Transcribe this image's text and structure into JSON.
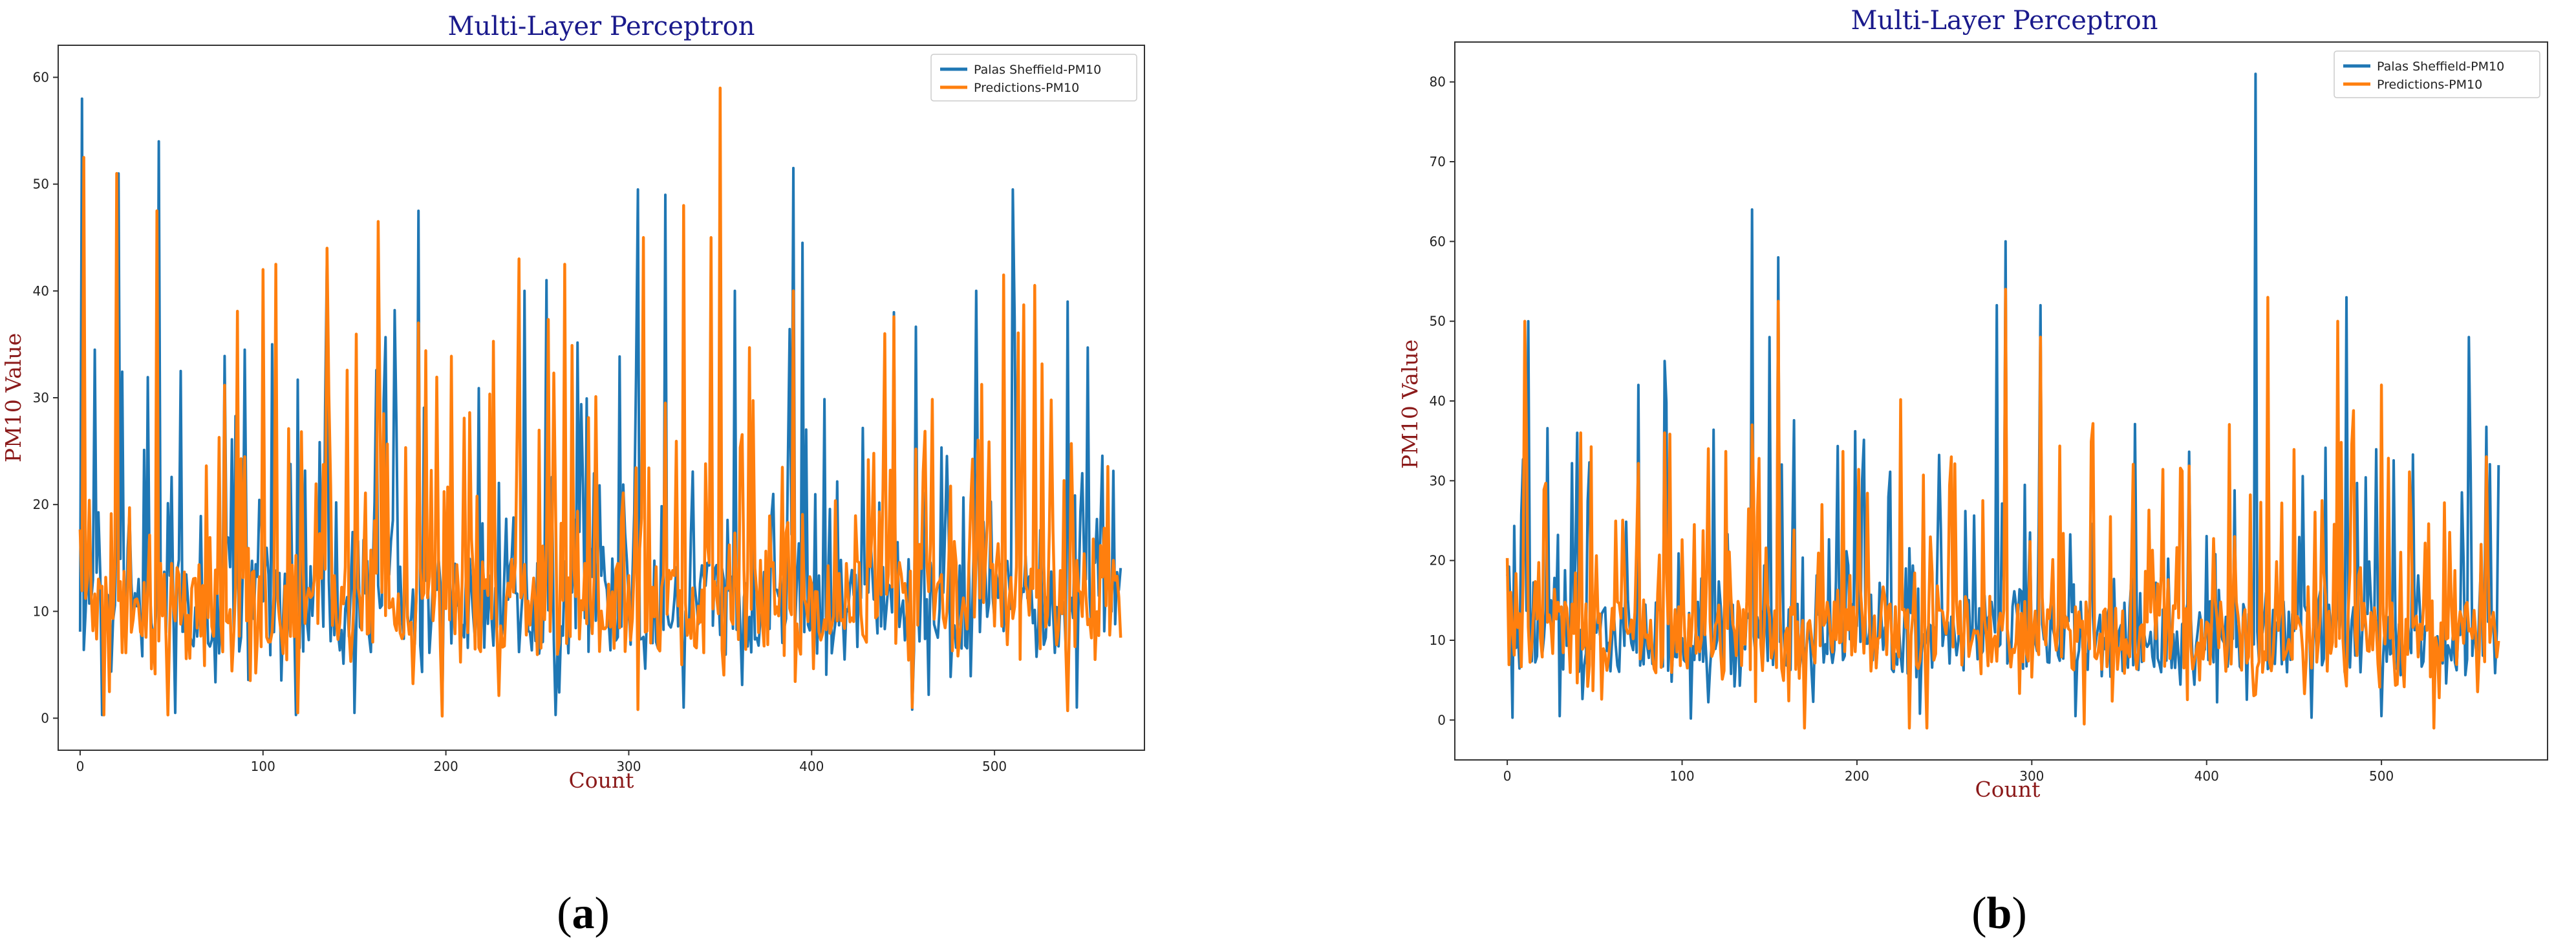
{
  "chart_data": [
    {
      "panel": "(a)",
      "type": "line",
      "title": "Multi-Layer Perceptron",
      "xlabel": "Count",
      "ylabel": "PM10 Value",
      "xlim": [
        -12,
        582
      ],
      "ylim": [
        -3,
        63
      ],
      "xticks": [
        0,
        100,
        200,
        300,
        400,
        500
      ],
      "yticks": [
        0,
        10,
        20,
        30,
        40,
        50,
        60
      ],
      "legend_position": "top-right",
      "n_points": 570,
      "seed": 7,
      "series": [
        {
          "name": "Palas Sheffield-PM10",
          "color": "#1f77b4",
          "peaks": [
            [
              1,
              58
            ],
            [
              3,
              10
            ],
            [
              8,
              34.5
            ],
            [
              21,
              51
            ],
            [
              43,
              54
            ],
            [
              55,
              32.5
            ],
            [
              90,
              34.5
            ],
            [
              105,
              35
            ],
            [
              135,
              44
            ],
            [
              150,
              42.5
            ],
            [
              185,
              47.5
            ],
            [
              243,
              40
            ],
            [
              255,
              41
            ],
            [
              305,
              49.5
            ],
            [
              320,
              49
            ],
            [
              345,
              44
            ],
            [
              358,
              40
            ],
            [
              390,
              51.5
            ],
            [
              395,
              44.5
            ],
            [
              445,
              38
            ],
            [
              490,
              40
            ],
            [
              510,
              49.5
            ],
            [
              540,
              39
            ]
          ],
          "dips": [
            [
              12,
              0.3
            ],
            [
              52,
              0.5
            ],
            [
              118,
              0.3
            ],
            [
              150,
              0.5
            ],
            [
              198,
              0.4
            ],
            [
              260,
              0.3
            ],
            [
              330,
              1.0
            ],
            [
              455,
              0.8
            ],
            [
              545,
              1.0
            ]
          ]
        },
        {
          "name": "Predictions-PM10",
          "color": "#ff7f0e",
          "peaks": [
            [
              2,
              52.5
            ],
            [
              20,
              51
            ],
            [
              42,
              47.5
            ],
            [
              100,
              42
            ],
            [
              107,
              42.5
            ],
            [
              135,
              44
            ],
            [
              163,
              46.5
            ],
            [
              185,
              37
            ],
            [
              240,
              43
            ],
            [
              265,
              42.5
            ],
            [
              308,
              45
            ],
            [
              330,
              48
            ],
            [
              345,
              45
            ],
            [
              350,
              59
            ],
            [
              390,
              40
            ],
            [
              440,
              36
            ],
            [
              505,
              41.5
            ],
            [
              540,
              28
            ]
          ],
          "dips": [
            [
              13,
              0.3
            ],
            [
              48,
              0.3
            ],
            [
              119,
              0.5
            ],
            [
              198,
              0.2
            ],
            [
              305,
              0.8
            ],
            [
              455,
              1.0
            ],
            [
              540,
              0.7
            ]
          ]
        }
      ]
    },
    {
      "panel": "(b)",
      "type": "line",
      "title": "Multi-Layer Perceptron",
      "xlabel": "Count",
      "ylabel": "PM10 Value",
      "xlim": [
        -30,
        595
      ],
      "ylim": [
        -5,
        85
      ],
      "xticks": [
        0,
        100,
        200,
        300,
        400,
        500
      ],
      "yticks": [
        0,
        10,
        20,
        30,
        40,
        50,
        60,
        70,
        80
      ],
      "legend_position": "top-right",
      "n_points": 568,
      "seed": 19,
      "series": [
        {
          "name": "Palas Sheffield-PM10",
          "color": "#1f77b4",
          "peaks": [
            [
              12,
              50
            ],
            [
              40,
              36
            ],
            [
              75,
              42
            ],
            [
              90,
              45
            ],
            [
              140,
              64
            ],
            [
              150,
              48
            ],
            [
              155,
              58
            ],
            [
              280,
              52
            ],
            [
              285,
              60
            ],
            [
              305,
              52
            ],
            [
              325,
              46
            ],
            [
              428,
              81
            ],
            [
              480,
              53
            ],
            [
              500,
              51
            ],
            [
              550,
              48
            ]
          ],
          "dips": [
            [
              3,
              0.3
            ],
            [
              30,
              0.5
            ],
            [
              105,
              0.2
            ],
            [
              170,
              0.5
            ],
            [
              236,
              0.8
            ],
            [
              325,
              0.5
            ],
            [
              460,
              0.3
            ],
            [
              500,
              0.5
            ]
          ]
        },
        {
          "name": "Predictions-PM10",
          "color": "#ff7f0e",
          "peaks": [
            [
              10,
              50
            ],
            [
              42,
              36
            ],
            [
              90,
              36
            ],
            [
              140,
              37
            ],
            [
              155,
              52.5
            ],
            [
              285,
              54
            ],
            [
              305,
              48
            ],
            [
              435,
              53
            ],
            [
              475,
              50
            ],
            [
              500,
              42
            ],
            [
              560,
              33
            ]
          ],
          "dips": [
            [
              170,
              -1
            ],
            [
              230,
              -1
            ],
            [
              240,
              -1
            ],
            [
              330,
              -0.5
            ],
            [
              530,
              -1
            ]
          ]
        }
      ]
    }
  ],
  "captions": {
    "a": {
      "open": "(",
      "letter": "a",
      "close": ")"
    },
    "b": {
      "open": "(",
      "letter": "b",
      "close": ")"
    }
  }
}
